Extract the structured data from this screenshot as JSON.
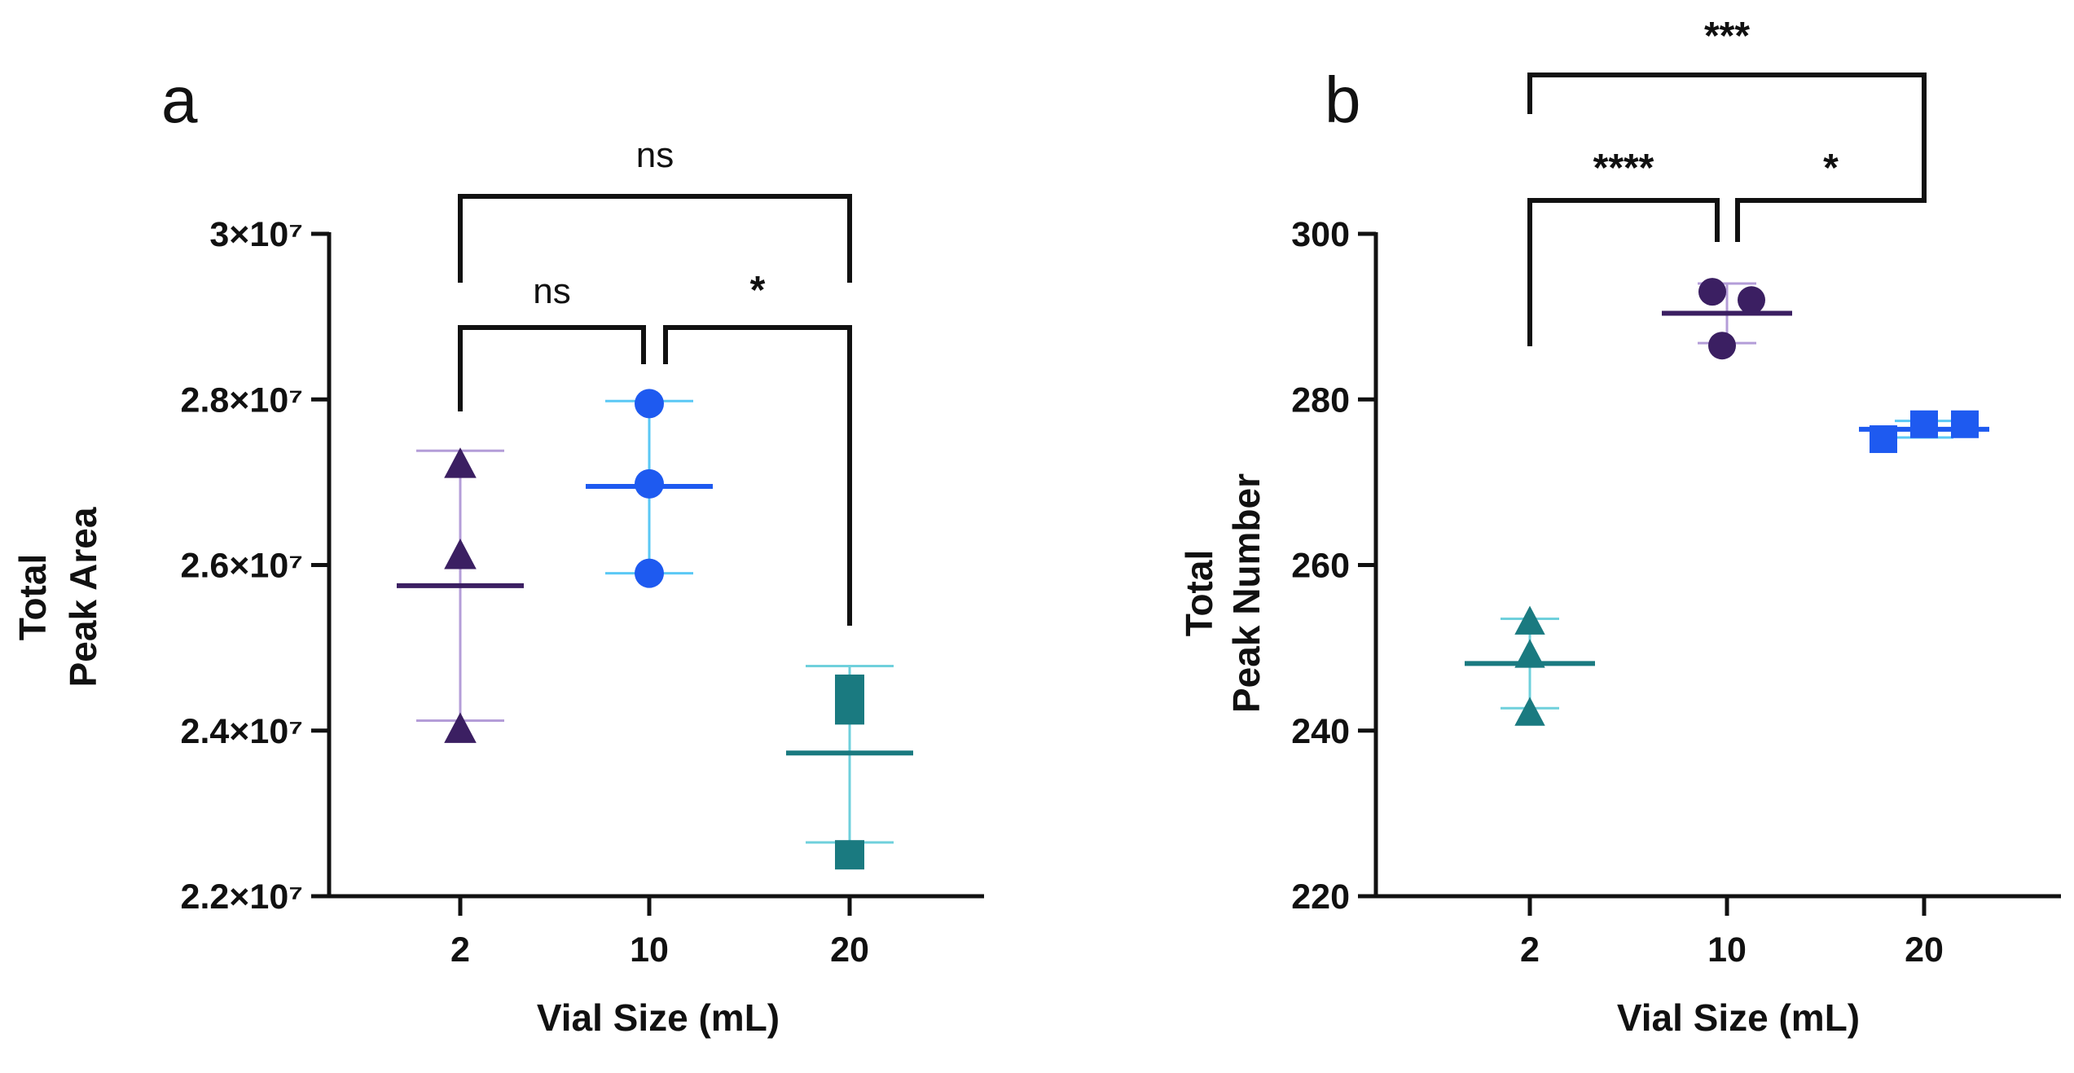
{
  "chart_data": [
    {
      "panel": "a",
      "type": "scatter",
      "title": "",
      "xlabel": "Vial Size (mL)",
      "ylabel": [
        "Total",
        "Peak Area"
      ],
      "categories": [
        "2",
        "10",
        "20"
      ],
      "ylim": [
        22000000,
        30000000
      ],
      "yticks": [
        {
          "value": 22000000,
          "label": "2.2×10⁷"
        },
        {
          "value": 24000000,
          "label": "2.4×10⁷"
        },
        {
          "value": 26000000,
          "label": "2.6×10⁷"
        },
        {
          "value": 28000000,
          "label": "2.8×10⁷"
        },
        {
          "value": 30000000,
          "label": "3×10⁷"
        }
      ],
      "series": [
        {
          "name": "2",
          "marker": "triangle",
          "color": "#3b1f62",
          "whisker_color": "#b49dd8",
          "points": [
            27200000,
            26100000,
            24000000
          ],
          "mean": 25750000,
          "sd_low": 24120000,
          "sd_high": 27380000
        },
        {
          "name": "10",
          "marker": "circle",
          "color": "#1e5af0",
          "whisker_color": "#5ac8f5",
          "points": [
            27950000,
            26980000,
            25900000
          ],
          "mean": 26950000,
          "sd_low": 25900000,
          "sd_high": 27980000
        },
        {
          "name": "20",
          "marker": "square",
          "color": "#1a7a80",
          "whisker_color": "#6fd0dc",
          "points": [
            24500000,
            24250000,
            22500000
          ],
          "mean": 23730000,
          "sd_low": 22650000,
          "sd_high": 24780000
        }
      ],
      "comparisons": [
        {
          "from": "2",
          "to": "10",
          "label": "ns"
        },
        {
          "from": "10",
          "to": "20",
          "label": "*"
        },
        {
          "from": "2",
          "to": "20",
          "label": "ns"
        }
      ]
    },
    {
      "panel": "b",
      "type": "scatter",
      "title": "",
      "xlabel": "Vial Size (mL)",
      "ylabel": [
        "Total",
        "Peak Number"
      ],
      "categories": [
        "2",
        "10",
        "20"
      ],
      "ylim": [
        220,
        300
      ],
      "yticks": [
        {
          "value": 220,
          "label": "220"
        },
        {
          "value": 240,
          "label": "240"
        },
        {
          "value": 260,
          "label": "260"
        },
        {
          "value": 280,
          "label": "280"
        },
        {
          "value": 300,
          "label": "300"
        }
      ],
      "series": [
        {
          "name": "2",
          "marker": "triangle",
          "color": "#1a7a80",
          "whisker_color": "#6fd0dc",
          "points": [
            253,
            249,
            242
          ],
          "mean": 248.1,
          "sd_low": 242.7,
          "sd_high": 253.5
        },
        {
          "name": "10",
          "marker": "circle",
          "color": "#3b1f62",
          "whisker_color": "#b49dd8",
          "points": [
            293,
            292,
            286.5
          ],
          "mean": 290.4,
          "sd_low": 286.8,
          "sd_high": 294
        },
        {
          "name": "20",
          "marker": "square",
          "color": "#1e5af0",
          "whisker_color": "#5ac8f5",
          "points": [
            275.2,
            277,
            277
          ],
          "mean": 276.4,
          "sd_low": 275.4,
          "sd_high": 277.4
        }
      ],
      "comparisons": [
        {
          "from": "2",
          "to": "10",
          "label": "****"
        },
        {
          "from": "10",
          "to": "20",
          "label": "*"
        },
        {
          "from": "2",
          "to": "20",
          "label": "***"
        }
      ]
    }
  ]
}
